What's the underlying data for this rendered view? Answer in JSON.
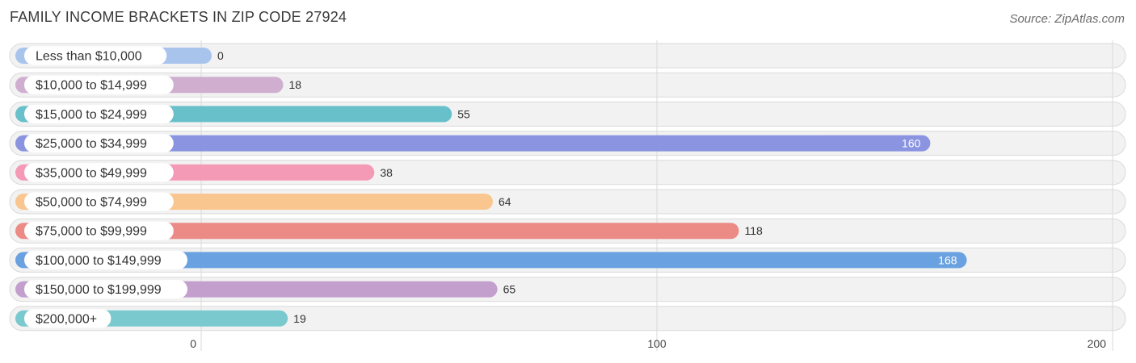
{
  "header": {
    "title": "FAMILY INCOME BRACKETS IN ZIP CODE 27924",
    "source": "Source: ZipAtlas.com"
  },
  "chart_data": {
    "type": "bar",
    "orientation": "horizontal",
    "title": "FAMILY INCOME BRACKETS IN ZIP CODE 27924",
    "xlabel": "",
    "ylabel": "",
    "categories": [
      "Less than $10,000",
      "$10,000 to $14,999",
      "$15,000 to $24,999",
      "$25,000 to $34,999",
      "$35,000 to $49,999",
      "$50,000 to $74,999",
      "$75,000 to $99,999",
      "$100,000 to $149,999",
      "$150,000 to $199,999",
      "$200,000+"
    ],
    "values": [
      0,
      18,
      55,
      160,
      38,
      64,
      118,
      168,
      65,
      19
    ],
    "colors": [
      "#a9c4ec",
      "#cfaed0",
      "#67c0ca",
      "#8a94e0",
      "#f59ab6",
      "#f9c68f",
      "#ec8a86",
      "#6aa1e0",
      "#c39fce",
      "#7ac9cf"
    ],
    "xlim": [
      0,
      200
    ],
    "xticks": [
      0,
      100,
      200
    ],
    "grid": true,
    "legend": "none"
  }
}
